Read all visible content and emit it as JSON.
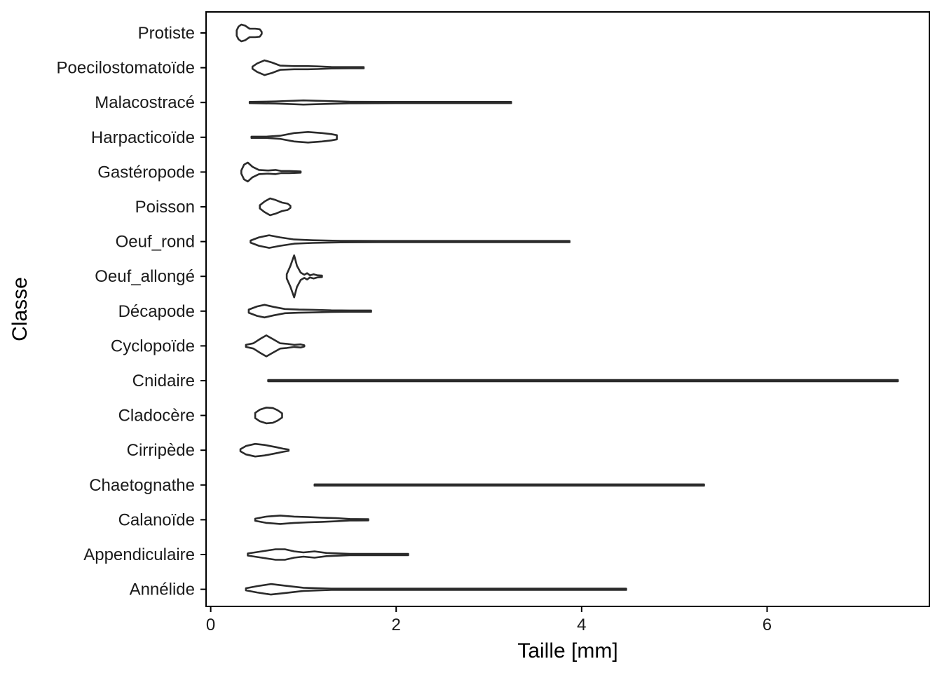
{
  "chart_data": {
    "type": "violin",
    "orientation": "horizontal",
    "xlabel": "Taille  [mm]",
    "ylabel": "Classe",
    "xlim": [
      -0.05,
      7.75
    ],
    "x_ticks": [
      0,
      2,
      4,
      6
    ],
    "grid": false,
    "colors": {
      "outline": "#2b2b2b",
      "axis": "#000000",
      "text": "#1a1a1a"
    },
    "categories": [
      "Protiste",
      "Poecilostomatoïde",
      "Malacostracé",
      "Harpacticoïde",
      "Gastéropode",
      "Poisson",
      "Oeuf_rond",
      "Oeuf_allongé",
      "Décapode",
      "Cyclopoïde",
      "Cnidaire",
      "Cladocère",
      "Cirripède",
      "Chaetognathe",
      "Calanoïde",
      "Appendiculaire",
      "Annélide"
    ],
    "violins": [
      {
        "label": "Protiste",
        "min": 0.28,
        "max": 0.55,
        "profile": [
          [
            0.28,
            0.05
          ],
          [
            0.3,
            0.12
          ],
          [
            0.33,
            0.16
          ],
          [
            0.37,
            0.14
          ],
          [
            0.42,
            0.08
          ],
          [
            0.48,
            0.08
          ],
          [
            0.53,
            0.07
          ],
          [
            0.55,
            0.02
          ]
        ]
      },
      {
        "label": "Poecilostomatoïde",
        "min": 0.45,
        "max": 1.65,
        "profile": [
          [
            0.45,
            0.02
          ],
          [
            0.5,
            0.08
          ],
          [
            0.58,
            0.14
          ],
          [
            0.66,
            0.1
          ],
          [
            0.75,
            0.04
          ],
          [
            0.9,
            0.03
          ],
          [
            1.05,
            0.03
          ],
          [
            1.15,
            0.025
          ],
          [
            1.3,
            0.015
          ],
          [
            1.5,
            0.01
          ],
          [
            1.65,
            0.0
          ]
        ]
      },
      {
        "label": "Malacostracé",
        "min": 0.42,
        "max": 3.24,
        "profile": [
          [
            0.42,
            0.0
          ],
          [
            0.7,
            0.02
          ],
          [
            1.0,
            0.04
          ],
          [
            1.2,
            0.03
          ],
          [
            1.5,
            0.015
          ],
          [
            2.0,
            0.01
          ],
          [
            2.5,
            0.008
          ],
          [
            3.0,
            0.005
          ],
          [
            3.24,
            0.0
          ]
        ]
      },
      {
        "label": "Harpacticoïde",
        "min": 0.44,
        "max": 1.36,
        "profile": [
          [
            0.44,
            0.0
          ],
          [
            0.6,
            0.01
          ],
          [
            0.75,
            0.03
          ],
          [
            0.9,
            0.08
          ],
          [
            1.05,
            0.1
          ],
          [
            1.2,
            0.08
          ],
          [
            1.3,
            0.06
          ],
          [
            1.36,
            0.04
          ]
        ]
      },
      {
        "label": "Gastéropode",
        "min": 0.33,
        "max": 0.97,
        "profile": [
          [
            0.33,
            0.03
          ],
          [
            0.36,
            0.14
          ],
          [
            0.4,
            0.18
          ],
          [
            0.45,
            0.1
          ],
          [
            0.52,
            0.04
          ],
          [
            0.62,
            0.03
          ],
          [
            0.7,
            0.04
          ],
          [
            0.76,
            0.02
          ],
          [
            0.85,
            0.02
          ],
          [
            0.97,
            0.01
          ]
        ]
      },
      {
        "label": "Poisson",
        "min": 0.53,
        "max": 0.86,
        "profile": [
          [
            0.53,
            0.03
          ],
          [
            0.58,
            0.1
          ],
          [
            0.64,
            0.16
          ],
          [
            0.7,
            0.13
          ],
          [
            0.77,
            0.08
          ],
          [
            0.83,
            0.06
          ],
          [
            0.86,
            0.02
          ]
        ]
      },
      {
        "label": "Oeuf_rond",
        "min": 0.43,
        "max": 3.87,
        "profile": [
          [
            0.43,
            0.02
          ],
          [
            0.52,
            0.08
          ],
          [
            0.63,
            0.12
          ],
          [
            0.75,
            0.08
          ],
          [
            0.9,
            0.04
          ],
          [
            1.1,
            0.025
          ],
          [
            1.4,
            0.015
          ],
          [
            1.8,
            0.01
          ],
          [
            2.5,
            0.008
          ],
          [
            3.2,
            0.005
          ],
          [
            3.87,
            0.0
          ]
        ]
      },
      {
        "label": "Oeuf_allongé",
        "min": 0.82,
        "max": 1.2,
        "profile": [
          [
            0.82,
            0.04
          ],
          [
            0.86,
            0.2
          ],
          [
            0.9,
            0.4
          ],
          [
            0.93,
            0.2
          ],
          [
            0.97,
            0.07
          ],
          [
            1.01,
            0.03
          ],
          [
            1.04,
            0.06
          ],
          [
            1.07,
            0.02
          ],
          [
            1.11,
            0.04
          ],
          [
            1.15,
            0.02
          ],
          [
            1.2,
            0.015
          ]
        ]
      },
      {
        "label": "Décapode",
        "min": 0.41,
        "max": 1.73,
        "profile": [
          [
            0.41,
            0.03
          ],
          [
            0.5,
            0.09
          ],
          [
            0.58,
            0.12
          ],
          [
            0.68,
            0.08
          ],
          [
            0.8,
            0.04
          ],
          [
            0.95,
            0.03
          ],
          [
            1.1,
            0.025
          ],
          [
            1.3,
            0.015
          ],
          [
            1.5,
            0.01
          ],
          [
            1.73,
            0.0
          ]
        ]
      },
      {
        "label": "Cyclopoïde",
        "min": 0.38,
        "max": 1.01,
        "profile": [
          [
            0.38,
            0.02
          ],
          [
            0.46,
            0.05
          ],
          [
            0.54,
            0.14
          ],
          [
            0.6,
            0.2
          ],
          [
            0.68,
            0.12
          ],
          [
            0.75,
            0.05
          ],
          [
            0.82,
            0.04
          ],
          [
            0.9,
            0.02
          ],
          [
            0.97,
            0.03
          ],
          [
            1.01,
            0.0
          ]
        ]
      },
      {
        "label": "Cnidaire",
        "min": 0.62,
        "max": 7.41,
        "profile": [
          [
            0.62,
            0.0
          ],
          [
            1.0,
            0.01
          ],
          [
            2.0,
            0.008
          ],
          [
            4.0,
            0.006
          ],
          [
            6.0,
            0.005
          ],
          [
            7.41,
            0.0
          ]
        ]
      },
      {
        "label": "Cladocère",
        "min": 0.48,
        "max": 0.77,
        "profile": [
          [
            0.48,
            0.05
          ],
          [
            0.53,
            0.11
          ],
          [
            0.6,
            0.15
          ],
          [
            0.67,
            0.14
          ],
          [
            0.72,
            0.1
          ],
          [
            0.77,
            0.04
          ]
        ]
      },
      {
        "label": "Cirripède",
        "min": 0.32,
        "max": 0.84,
        "profile": [
          [
            0.32,
            0.02
          ],
          [
            0.38,
            0.08
          ],
          [
            0.48,
            0.12
          ],
          [
            0.58,
            0.1
          ],
          [
            0.7,
            0.06
          ],
          [
            0.78,
            0.03
          ],
          [
            0.84,
            0.01
          ]
        ]
      },
      {
        "label": "Chaetognathe",
        "min": 1.12,
        "max": 5.32,
        "profile": [
          [
            1.12,
            0.0
          ],
          [
            2.0,
            0.005
          ],
          [
            3.0,
            0.007
          ],
          [
            4.0,
            0.005
          ],
          [
            5.32,
            0.0
          ]
        ]
      },
      {
        "label": "Calanoïde",
        "min": 0.48,
        "max": 1.7,
        "profile": [
          [
            0.48,
            0.02
          ],
          [
            0.6,
            0.06
          ],
          [
            0.75,
            0.08
          ],
          [
            0.9,
            0.06
          ],
          [
            1.05,
            0.05
          ],
          [
            1.2,
            0.04
          ],
          [
            1.35,
            0.03
          ],
          [
            1.5,
            0.015
          ],
          [
            1.7,
            0.0
          ]
        ]
      },
      {
        "label": "Appendiculaire",
        "min": 0.4,
        "max": 2.13,
        "profile": [
          [
            0.4,
            0.02
          ],
          [
            0.55,
            0.06
          ],
          [
            0.7,
            0.1
          ],
          [
            0.8,
            0.1
          ],
          [
            0.9,
            0.06
          ],
          [
            1.0,
            0.04
          ],
          [
            1.12,
            0.06
          ],
          [
            1.25,
            0.03
          ],
          [
            1.5,
            0.01
          ],
          [
            2.13,
            0.0
          ]
        ]
      },
      {
        "label": "Annélide",
        "min": 0.38,
        "max": 4.48,
        "profile": [
          [
            0.38,
            0.02
          ],
          [
            0.5,
            0.06
          ],
          [
            0.65,
            0.1
          ],
          [
            0.8,
            0.07
          ],
          [
            1.0,
            0.03
          ],
          [
            1.3,
            0.01
          ],
          [
            2.0,
            0.008
          ],
          [
            3.0,
            0.006
          ],
          [
            4.48,
            0.0
          ]
        ]
      }
    ]
  }
}
